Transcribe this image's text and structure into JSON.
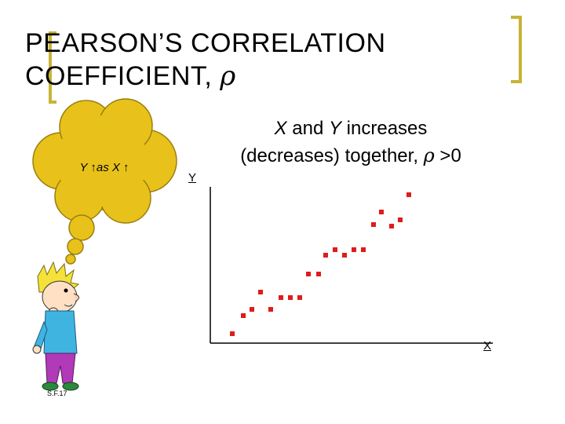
{
  "title": {
    "line1": "PEARSON’S CORRELATION",
    "line2_text": "COEFFICIENT, ",
    "rho": "ρ"
  },
  "caption": {
    "x_var": "X",
    "and_text": " and ",
    "y_var": "Y",
    "line1_rest": " increases",
    "line2": "(decreases) together, ",
    "rho": "ρ",
    "condition": " >0"
  },
  "thought_bubble": {
    "text": "Y ↑as X ↑"
  },
  "axes": {
    "y_label": "Y",
    "x_label": "X"
  },
  "signature": "S.F.17",
  "colors": {
    "accent": "#c9b336",
    "points": "#e01b1b",
    "cloud": "#e8c21a",
    "cloud_stroke": "#9a7f10"
  },
  "chart_data": {
    "type": "scatter",
    "points": [
      [
        296,
        425
      ],
      [
        310,
        402
      ],
      [
        321,
        394
      ],
      [
        332,
        372
      ],
      [
        345,
        394
      ],
      [
        358,
        379
      ],
      [
        370,
        379
      ],
      [
        382,
        379
      ],
      [
        393,
        349
      ],
      [
        406,
        349
      ],
      [
        415,
        325
      ],
      [
        427,
        318
      ],
      [
        439,
        325
      ],
      [
        451,
        318
      ],
      [
        463,
        318
      ],
      [
        476,
        286
      ],
      [
        486,
        270
      ],
      [
        499,
        288
      ],
      [
        510,
        280
      ],
      [
        521,
        248
      ]
    ]
  }
}
